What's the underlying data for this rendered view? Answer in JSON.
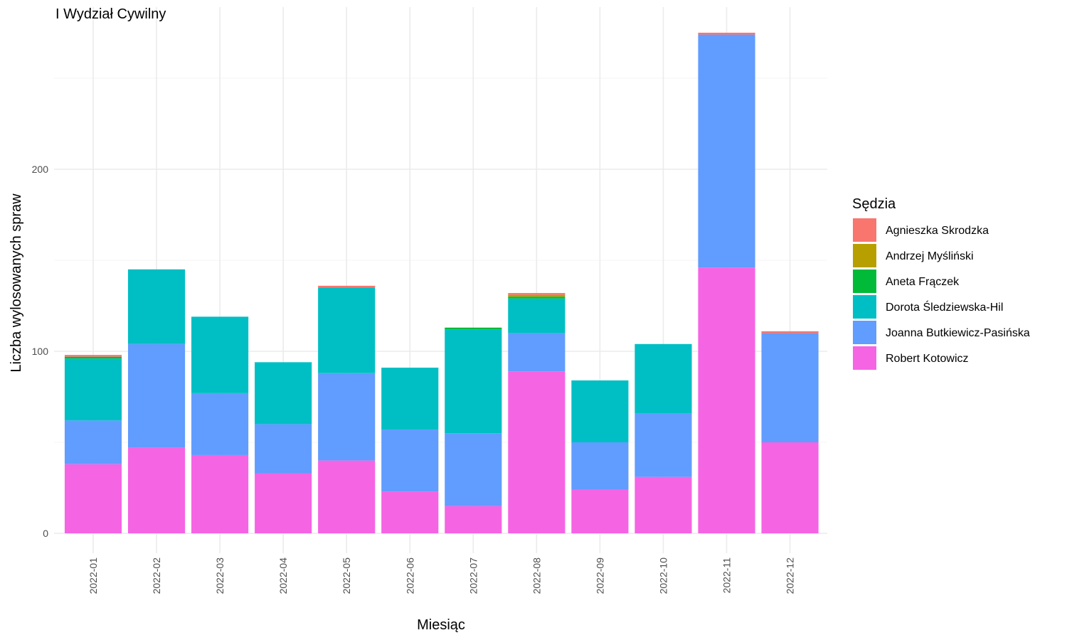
{
  "chart_data": {
    "type": "bar",
    "stacked": true,
    "title": "I Wydział Cywilny",
    "xlabel": "Miesiąc",
    "ylabel": "Liczba wylosowanych spraw",
    "ylim": [
      0,
      290
    ],
    "yticks": [
      0,
      100,
      200
    ],
    "grid": true,
    "legend_title": "Sędzia",
    "legend_position": "right",
    "categories": [
      "2022-01",
      "2022-02",
      "2022-03",
      "2022-04",
      "2022-05",
      "2022-06",
      "2022-07",
      "2022-08",
      "2022-09",
      "2022-10",
      "2022-11",
      "2022-12"
    ],
    "series": [
      {
        "name": "Robert Kotowicz",
        "color": "#F564E3",
        "values": [
          38,
          47,
          43,
          33,
          40,
          23,
          15,
          89,
          24,
          31,
          146,
          50
        ]
      },
      {
        "name": "Joanna Butkiewicz-Pasińska",
        "color": "#619CFF",
        "values": [
          24,
          57,
          34,
          27,
          48,
          34,
          40,
          21,
          26,
          35,
          128,
          60
        ]
      },
      {
        "name": "Dorota Śledziewska-Hil",
        "color": "#00BFC4",
        "values": [
          34,
          41,
          42,
          34,
          47,
          34,
          57,
          19,
          34,
          38,
          0,
          0
        ]
      },
      {
        "name": "Aneta Frączek",
        "color": "#00BA38",
        "values": [
          1,
          0,
          0,
          0,
          0,
          0,
          1,
          1,
          0,
          0,
          0,
          0
        ]
      },
      {
        "name": "Andrzej Myśliński",
        "color": "#B79F00",
        "values": [
          0,
          0,
          0,
          0,
          0,
          0,
          0,
          1,
          0,
          0,
          0,
          0
        ]
      },
      {
        "name": "Agnieszka Skrodzka",
        "color": "#F8766D",
        "values": [
          1,
          0,
          0,
          0,
          1,
          0,
          0,
          1,
          0,
          0,
          1,
          1
        ]
      }
    ],
    "legend_order": [
      "Agnieszka Skrodzka",
      "Andrzej Myśliński",
      "Aneta Frączek",
      "Dorota Śledziewska-Hil",
      "Joanna Butkiewicz-Pasińska",
      "Robert Kotowicz"
    ]
  }
}
